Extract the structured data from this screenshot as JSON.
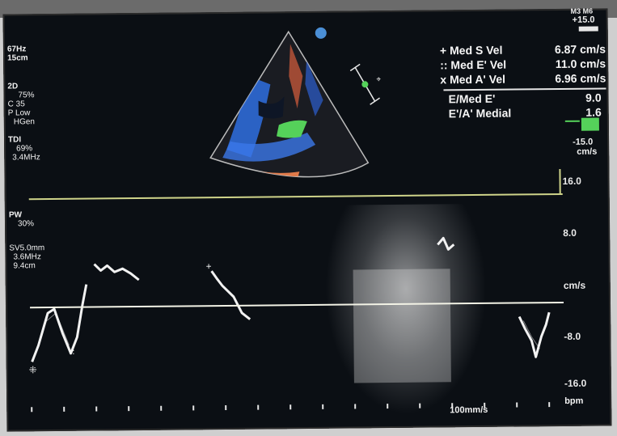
{
  "top_right": {
    "label": "M3 M6",
    "plus_value": "+15.0",
    "minus_value": "-15.0",
    "unit": "cm/s"
  },
  "left_panel": {
    "probe_freq": "67Hz",
    "depth": "15cm",
    "mode_2d": "2D",
    "gain_2d": "75%",
    "c_value": "C 35",
    "p_value": "P Low",
    "hgen": "HGen",
    "tdi": "TDI",
    "tdi_gain": "69%",
    "tdi_freq": "3.4MHz",
    "pw": "PW",
    "pw_gain": "30%",
    "sv": "SV5.0mm",
    "pw_freq": "3.6MHz",
    "pw_depth": "9.4cm"
  },
  "measurements": [
    {
      "label": "Med S Vel",
      "value": "6.87 cm/s",
      "marker": "+"
    },
    {
      "label": "Med E' Vel",
      "value": "11.0 cm/s",
      "marker": "::"
    },
    {
      "label": "Med A' Vel",
      "value": "6.96 cm/s",
      "marker": "x"
    }
  ],
  "ratios": [
    {
      "label": "E/Med E'",
      "value": "9.0"
    },
    {
      "label": "E'/A' Medial",
      "value": "1.6"
    }
  ],
  "velocity_scale": {
    "ticks": [
      "16.0",
      "8.0",
      "cm/s",
      "-8.0",
      "-16.0"
    ]
  },
  "footer": {
    "sweep": "100mm/s",
    "bpm": "bpm"
  },
  "colors": {
    "background": "#0b0f14",
    "baseline": "#f3f3e6",
    "tdi_green": "#55d15a",
    "tdi_blue": "#2f6fe0",
    "tdi_orange": "#e07a4a"
  }
}
